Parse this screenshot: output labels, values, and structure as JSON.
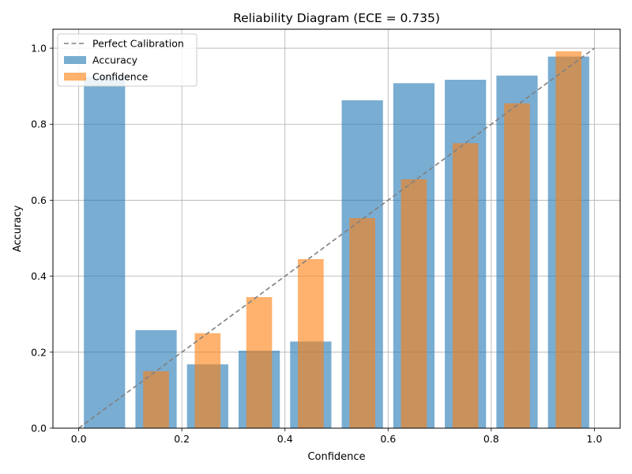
{
  "chart_data": {
    "type": "bar",
    "title": "Reliability Diagram (ECE = 0.735)",
    "xlabel": "Confidence",
    "ylabel": "Accuracy",
    "xlim": [
      -0.05,
      1.05
    ],
    "ylim": [
      0,
      1.05
    ],
    "xticks": [
      0.0,
      0.2,
      0.4,
      0.6,
      0.8,
      1.0
    ],
    "yticks": [
      0.0,
      0.2,
      0.4,
      0.6,
      0.8,
      1.0
    ],
    "grid": true,
    "legend_position": "top-left",
    "bin_centers": [
      0.05,
      0.15,
      0.25,
      0.35,
      0.45,
      0.55,
      0.65,
      0.75,
      0.85,
      0.95
    ],
    "series": [
      {
        "name": "Accuracy",
        "kind": "bar",
        "bar_width": 0.08,
        "color": "#1f77b4",
        "alpha": 0.6,
        "values": [
          0.925,
          0.258,
          0.168,
          0.204,
          0.228,
          0.863,
          0.908,
          0.917,
          0.928,
          0.978
        ]
      },
      {
        "name": "Confidence",
        "kind": "bar",
        "bar_width": 0.05,
        "color": "#ff7f0e",
        "alpha": 0.6,
        "values": [
          null,
          0.15,
          0.25,
          0.345,
          0.445,
          0.553,
          0.655,
          0.75,
          0.855,
          0.992
        ]
      },
      {
        "name": "Perfect Calibration",
        "kind": "line",
        "dash": "dashed",
        "color": "#808080",
        "x": [
          0,
          1
        ],
        "y": [
          0,
          1
        ]
      }
    ]
  }
}
